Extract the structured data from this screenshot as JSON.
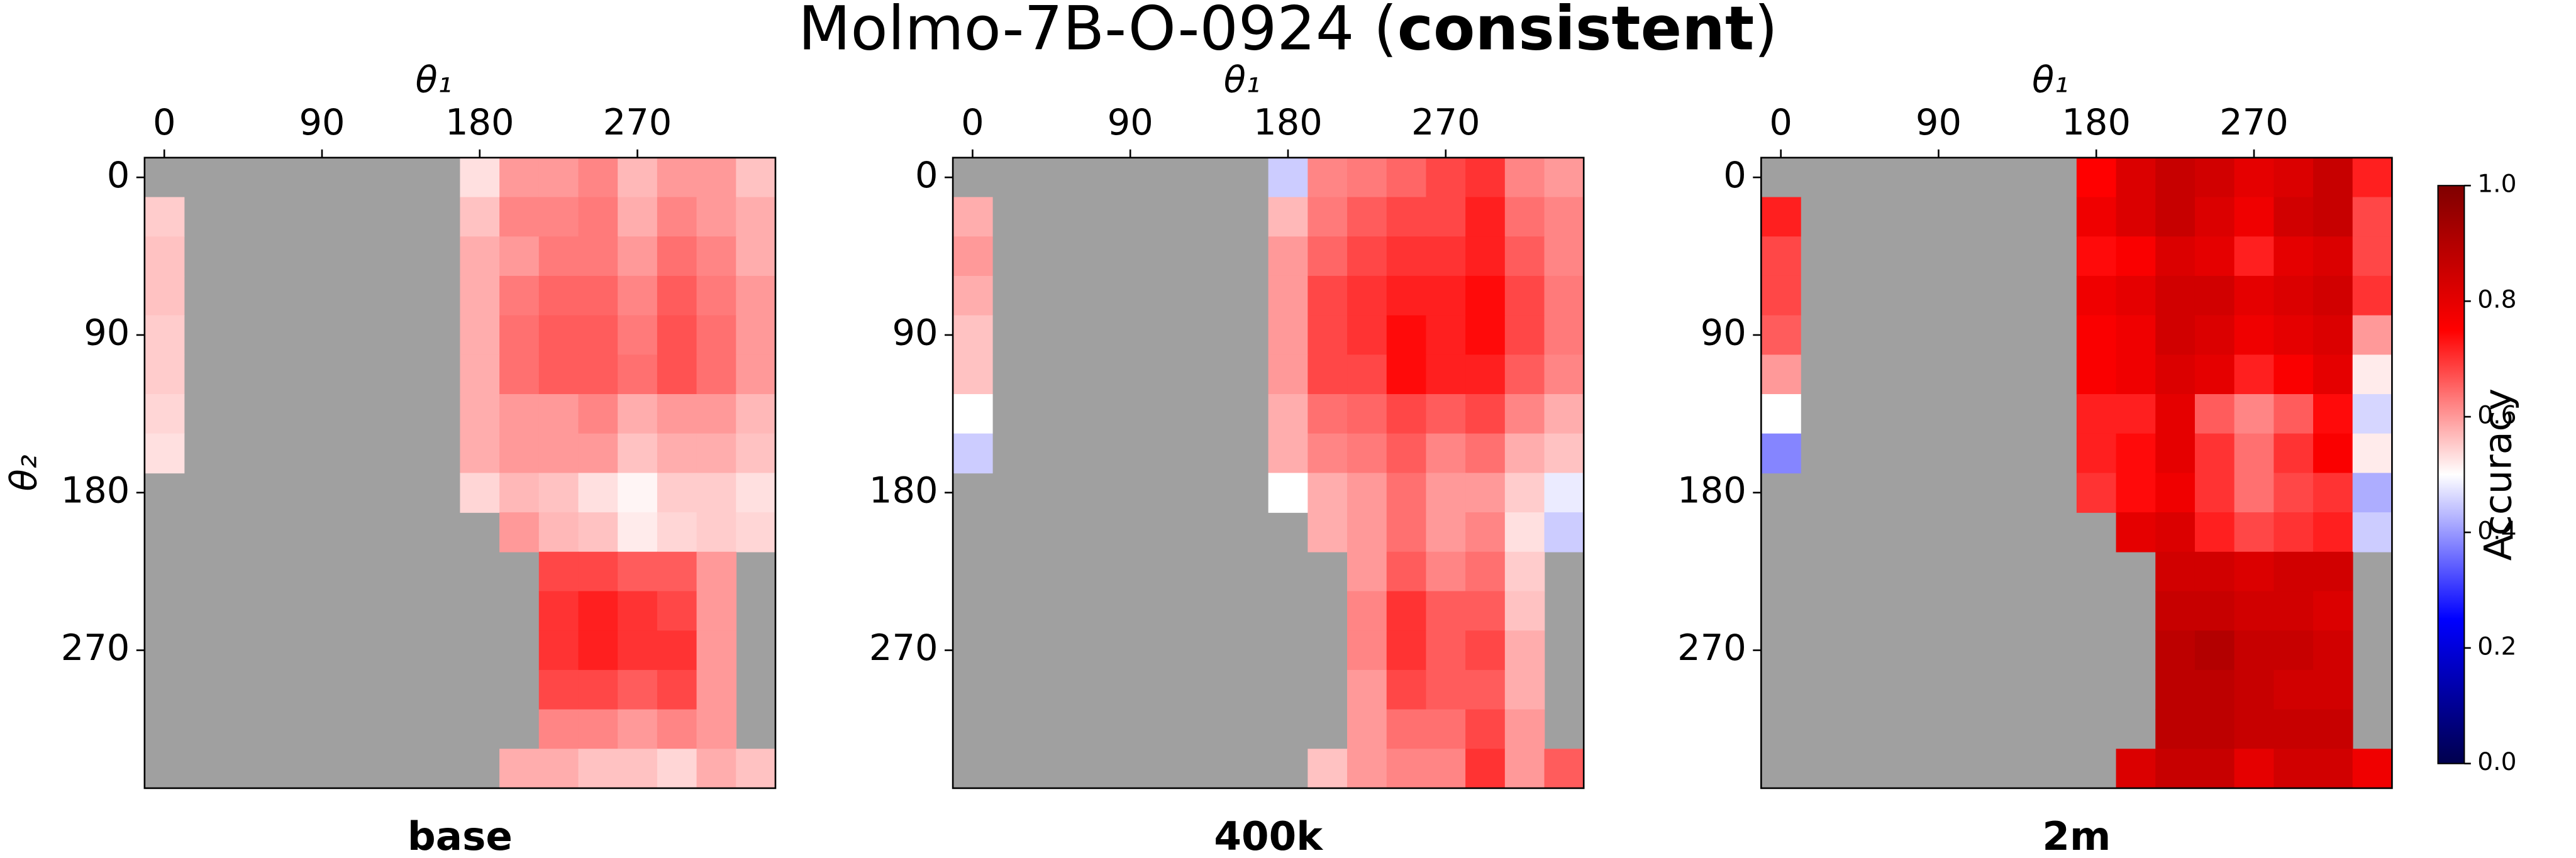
{
  "title_parts": [
    "Molmo-7B-O-0924 (",
    "consistent",
    ")"
  ],
  "colorbar": {
    "label": "Accuracy",
    "cmap": "seismic",
    "lim": [
      0,
      1
    ],
    "ticks": [
      {
        "value": 0,
        "label": "0.0"
      },
      {
        "value": 0.2,
        "label": "0.2"
      },
      {
        "value": 0.4,
        "label": "0.4"
      },
      {
        "value": 0.6,
        "label": "0.6"
      },
      {
        "value": 0.8,
        "label": "0.8"
      },
      {
        "value": 1,
        "label": "1.0"
      }
    ]
  },
  "chart_data": [
    {
      "type": "heatmap",
      "subtitle": "base",
      "xlabel": "θ₁",
      "ylabel": "θ₂",
      "missing_color": "#a0a0a0",
      "x": [
        0,
        22.5,
        45,
        67.5,
        90,
        112.5,
        135,
        157.5,
        180,
        202.5,
        225,
        247.5,
        270,
        292.5,
        315,
        337.5
      ],
      "y": [
        0,
        22.5,
        45,
        67.5,
        90,
        112.5,
        135,
        157.5,
        180,
        202.5,
        225,
        247.5,
        270,
        292.5,
        315,
        337.5
      ],
      "xlim": [
        -11.25,
        348.75
      ],
      "ylim": [
        -11.25,
        348.75
      ],
      "xticks": [
        0,
        90,
        180,
        270
      ],
      "yticks": [
        0,
        90,
        180,
        270
      ],
      "values": [
        [
          null,
          null,
          null,
          null,
          null,
          null,
          null,
          null,
          0.53,
          0.6,
          0.6,
          0.62,
          0.57,
          0.6,
          0.6,
          0.56
        ],
        [
          0.55,
          null,
          null,
          null,
          null,
          null,
          null,
          null,
          0.56,
          0.62,
          0.62,
          0.63,
          0.58,
          0.62,
          0.6,
          0.58
        ],
        [
          0.56,
          null,
          null,
          null,
          null,
          null,
          null,
          null,
          0.58,
          0.6,
          0.63,
          0.63,
          0.6,
          0.64,
          0.62,
          0.58
        ],
        [
          0.56,
          null,
          null,
          null,
          null,
          null,
          null,
          null,
          0.58,
          0.63,
          0.65,
          0.65,
          0.62,
          0.66,
          0.63,
          0.6
        ],
        [
          0.55,
          null,
          null,
          null,
          null,
          null,
          null,
          null,
          0.58,
          0.64,
          0.66,
          0.66,
          0.63,
          0.67,
          0.64,
          0.6
        ],
        [
          0.55,
          null,
          null,
          null,
          null,
          null,
          null,
          null,
          0.58,
          0.64,
          0.66,
          0.66,
          0.64,
          0.67,
          0.64,
          0.6
        ],
        [
          0.54,
          null,
          null,
          null,
          null,
          null,
          null,
          null,
          0.58,
          0.6,
          0.6,
          0.62,
          0.58,
          0.6,
          0.6,
          0.57
        ],
        [
          0.53,
          null,
          null,
          null,
          null,
          null,
          null,
          null,
          0.58,
          0.6,
          0.6,
          0.6,
          0.56,
          0.58,
          0.58,
          0.56
        ],
        [
          null,
          null,
          null,
          null,
          null,
          null,
          null,
          null,
          0.54,
          0.57,
          0.56,
          0.53,
          0.51,
          0.55,
          0.55,
          0.53
        ],
        [
          null,
          null,
          null,
          null,
          null,
          null,
          null,
          null,
          null,
          0.6,
          0.57,
          0.56,
          0.52,
          0.54,
          0.55,
          0.54
        ],
        [
          null,
          null,
          null,
          null,
          null,
          null,
          null,
          null,
          null,
          null,
          0.68,
          0.68,
          0.66,
          0.66,
          0.6,
          null
        ],
        [
          null,
          null,
          null,
          null,
          null,
          null,
          null,
          null,
          null,
          null,
          0.7,
          0.72,
          0.7,
          0.68,
          0.6,
          null
        ],
        [
          null,
          null,
          null,
          null,
          null,
          null,
          null,
          null,
          null,
          null,
          0.7,
          0.72,
          0.7,
          0.7,
          0.6,
          null
        ],
        [
          null,
          null,
          null,
          null,
          null,
          null,
          null,
          null,
          null,
          null,
          0.68,
          0.68,
          0.66,
          0.68,
          0.6,
          null
        ],
        [
          null,
          null,
          null,
          null,
          null,
          null,
          null,
          null,
          null,
          null,
          0.62,
          0.62,
          0.6,
          0.62,
          0.6,
          null
        ],
        [
          null,
          null,
          null,
          null,
          null,
          null,
          null,
          null,
          null,
          0.58,
          0.58,
          0.56,
          0.56,
          0.54,
          0.58,
          0.56
        ]
      ]
    },
    {
      "type": "heatmap",
      "subtitle": "400k",
      "xlabel": "θ₁",
      "missing_color": "#a0a0a0",
      "x": [
        0,
        22.5,
        45,
        67.5,
        90,
        112.5,
        135,
        157.5,
        180,
        202.5,
        225,
        247.5,
        270,
        292.5,
        315,
        337.5
      ],
      "y": [
        0,
        22.5,
        45,
        67.5,
        90,
        112.5,
        135,
        157.5,
        180,
        202.5,
        225,
        247.5,
        270,
        292.5,
        315,
        337.5
      ],
      "xlim": [
        -11.25,
        348.75
      ],
      "ylim": [
        -11.25,
        348.75
      ],
      "xticks": [
        0,
        90,
        180,
        270
      ],
      "yticks": [
        0,
        90,
        180,
        270
      ],
      "values": [
        [
          null,
          null,
          null,
          null,
          null,
          null,
          null,
          null,
          0.45,
          0.62,
          0.63,
          0.65,
          0.68,
          0.7,
          0.62,
          0.6
        ],
        [
          0.58,
          null,
          null,
          null,
          null,
          null,
          null,
          null,
          0.57,
          0.63,
          0.66,
          0.68,
          0.68,
          0.72,
          0.64,
          0.62
        ],
        [
          0.6,
          null,
          null,
          null,
          null,
          null,
          null,
          null,
          0.6,
          0.65,
          0.68,
          0.7,
          0.7,
          0.72,
          0.66,
          0.62
        ],
        [
          0.58,
          null,
          null,
          null,
          null,
          null,
          null,
          null,
          0.6,
          0.68,
          0.7,
          0.72,
          0.72,
          0.74,
          0.68,
          0.63
        ],
        [
          0.56,
          null,
          null,
          null,
          null,
          null,
          null,
          null,
          0.6,
          0.68,
          0.7,
          0.74,
          0.72,
          0.74,
          0.68,
          0.63
        ],
        [
          0.56,
          null,
          null,
          null,
          null,
          null,
          null,
          null,
          0.6,
          0.68,
          0.68,
          0.74,
          0.72,
          0.72,
          0.66,
          0.62
        ],
        [
          0.5,
          null,
          null,
          null,
          null,
          null,
          null,
          null,
          0.58,
          0.64,
          0.65,
          0.68,
          0.66,
          0.68,
          0.62,
          0.58
        ],
        [
          0.45,
          null,
          null,
          null,
          null,
          null,
          null,
          null,
          0.58,
          0.62,
          0.63,
          0.66,
          0.62,
          0.64,
          0.58,
          0.56
        ],
        [
          null,
          null,
          null,
          null,
          null,
          null,
          null,
          null,
          0.5,
          0.58,
          0.6,
          0.64,
          0.6,
          0.6,
          0.55,
          0.48
        ],
        [
          null,
          null,
          null,
          null,
          null,
          null,
          null,
          null,
          null,
          0.58,
          0.6,
          0.64,
          0.6,
          0.62,
          0.53,
          0.45
        ],
        [
          null,
          null,
          null,
          null,
          null,
          null,
          null,
          null,
          null,
          null,
          0.6,
          0.66,
          0.62,
          0.64,
          0.55,
          null
        ],
        [
          null,
          null,
          null,
          null,
          null,
          null,
          null,
          null,
          null,
          null,
          0.62,
          0.7,
          0.66,
          0.66,
          0.56,
          null
        ],
        [
          null,
          null,
          null,
          null,
          null,
          null,
          null,
          null,
          null,
          null,
          0.62,
          0.7,
          0.66,
          0.68,
          0.58,
          null
        ],
        [
          null,
          null,
          null,
          null,
          null,
          null,
          null,
          null,
          null,
          null,
          0.6,
          0.68,
          0.66,
          0.66,
          0.58,
          null
        ],
        [
          null,
          null,
          null,
          null,
          null,
          null,
          null,
          null,
          null,
          null,
          0.6,
          0.64,
          0.64,
          0.68,
          0.6,
          null
        ],
        [
          null,
          null,
          null,
          null,
          null,
          null,
          null,
          null,
          null,
          0.56,
          0.6,
          0.62,
          0.62,
          0.7,
          0.6,
          0.66
        ]
      ]
    },
    {
      "type": "heatmap",
      "subtitle": "2m",
      "xlabel": "θ₁",
      "missing_color": "#a0a0a0",
      "x": [
        0,
        22.5,
        45,
        67.5,
        90,
        112.5,
        135,
        157.5,
        180,
        202.5,
        225,
        247.5,
        270,
        292.5,
        315,
        337.5
      ],
      "y": [
        0,
        22.5,
        45,
        67.5,
        90,
        112.5,
        135,
        157.5,
        180,
        202.5,
        225,
        247.5,
        270,
        292.5,
        315,
        337.5
      ],
      "xlim": [
        -11.25,
        348.75
      ],
      "ylim": [
        -11.25,
        348.75
      ],
      "xticks": [
        0,
        90,
        180,
        270
      ],
      "yticks": [
        0,
        90,
        180,
        270
      ],
      "values": [
        [
          null,
          null,
          null,
          null,
          null,
          null,
          null,
          null,
          0.75,
          0.82,
          0.86,
          0.84,
          0.8,
          0.82,
          0.86,
          0.72
        ],
        [
          0.72,
          null,
          null,
          null,
          null,
          null,
          null,
          null,
          0.78,
          0.82,
          0.86,
          0.82,
          0.78,
          0.84,
          0.86,
          0.68
        ],
        [
          0.68,
          null,
          null,
          null,
          null,
          null,
          null,
          null,
          0.74,
          0.76,
          0.82,
          0.8,
          0.72,
          0.8,
          0.82,
          0.68
        ],
        [
          0.68,
          null,
          null,
          null,
          null,
          null,
          null,
          null,
          0.78,
          0.8,
          0.84,
          0.84,
          0.8,
          0.82,
          0.84,
          0.7
        ],
        [
          0.66,
          null,
          null,
          null,
          null,
          null,
          null,
          null,
          0.76,
          0.78,
          0.84,
          0.82,
          0.78,
          0.8,
          0.82,
          0.6
        ],
        [
          0.6,
          null,
          null,
          null,
          null,
          null,
          null,
          null,
          0.76,
          0.78,
          0.82,
          0.8,
          0.72,
          0.76,
          0.8,
          0.52
        ],
        [
          0.5,
          null,
          null,
          null,
          null,
          null,
          null,
          null,
          0.72,
          0.72,
          0.8,
          0.66,
          0.62,
          0.66,
          0.74,
          0.46
        ],
        [
          0.38,
          null,
          null,
          null,
          null,
          null,
          null,
          null,
          0.72,
          0.74,
          0.8,
          0.7,
          0.64,
          0.7,
          0.76,
          0.52
        ],
        [
          null,
          null,
          null,
          null,
          null,
          null,
          null,
          null,
          0.7,
          0.74,
          0.78,
          0.7,
          0.64,
          0.68,
          0.7,
          0.42
        ],
        [
          null,
          null,
          null,
          null,
          null,
          null,
          null,
          null,
          null,
          0.8,
          0.82,
          0.72,
          0.68,
          0.7,
          0.72,
          0.45
        ],
        [
          null,
          null,
          null,
          null,
          null,
          null,
          null,
          null,
          null,
          null,
          0.84,
          0.84,
          0.82,
          0.84,
          0.84,
          null
        ],
        [
          null,
          null,
          null,
          null,
          null,
          null,
          null,
          null,
          null,
          null,
          0.86,
          0.86,
          0.84,
          0.84,
          0.82,
          null
        ],
        [
          null,
          null,
          null,
          null,
          null,
          null,
          null,
          null,
          null,
          null,
          0.88,
          0.9,
          0.86,
          0.86,
          0.84,
          null
        ],
        [
          null,
          null,
          null,
          null,
          null,
          null,
          null,
          null,
          null,
          null,
          0.88,
          0.88,
          0.86,
          0.84,
          0.84,
          null
        ],
        [
          null,
          null,
          null,
          null,
          null,
          null,
          null,
          null,
          null,
          null,
          0.88,
          0.88,
          0.86,
          0.86,
          0.86,
          null
        ],
        [
          null,
          null,
          null,
          null,
          null,
          null,
          null,
          null,
          null,
          0.82,
          0.86,
          0.86,
          0.8,
          0.84,
          0.84,
          0.78
        ]
      ]
    }
  ]
}
